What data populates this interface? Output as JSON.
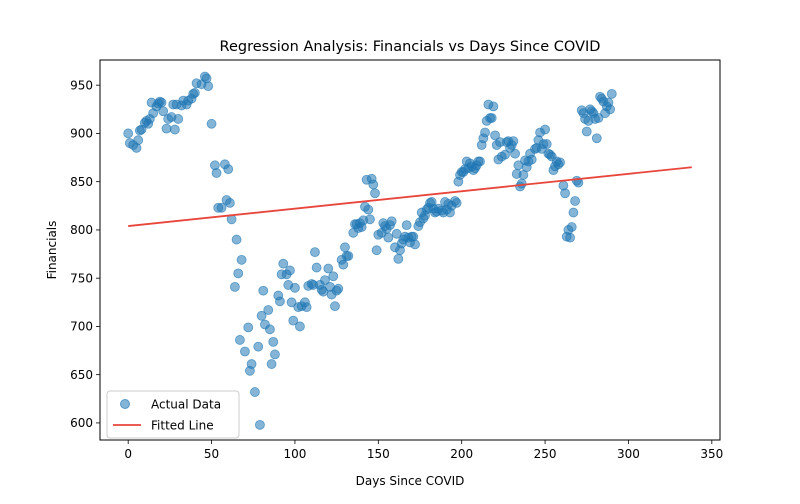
{
  "chart_data": {
    "type": "scatter",
    "title": "Regression Analysis: Financials vs Days Since COVID",
    "xlabel": "Days Since COVID",
    "ylabel": "Financials",
    "xlim": [
      -16.9,
      354.9
    ],
    "ylim": [
      582.3,
      976.1
    ],
    "xticks": [
      0,
      50,
      100,
      150,
      200,
      250,
      300,
      350
    ],
    "yticks": [
      600,
      650,
      700,
      750,
      800,
      850,
      900,
      950
    ],
    "grid": false,
    "legend_position": "lower-left",
    "series": [
      {
        "name": "Actual Data",
        "kind": "scatter",
        "color": "#1f77b4",
        "alpha": 0.55,
        "points": [
          [
            0,
            900
          ],
          [
            1,
            890
          ],
          [
            3,
            888
          ],
          [
            5,
            885
          ],
          [
            6,
            893
          ],
          [
            7,
            903
          ],
          [
            8,
            904
          ],
          [
            10,
            911
          ],
          [
            11,
            913
          ],
          [
            12,
            910
          ],
          [
            13,
            915
          ],
          [
            14,
            932
          ],
          [
            15,
            921
          ],
          [
            17,
            928
          ],
          [
            18,
            931
          ],
          [
            19,
            933
          ],
          [
            20,
            932
          ],
          [
            21,
            923
          ],
          [
            23,
            905
          ],
          [
            24,
            915
          ],
          [
            26,
            917
          ],
          [
            27,
            930
          ],
          [
            28,
            904
          ],
          [
            29,
            930
          ],
          [
            30,
            915
          ],
          [
            32,
            929
          ],
          [
            33,
            934
          ],
          [
            35,
            930
          ],
          [
            36,
            934
          ],
          [
            38,
            936
          ],
          [
            39,
            941
          ],
          [
            40,
            942
          ],
          [
            41,
            952
          ],
          [
            44,
            951
          ],
          [
            46,
            959
          ],
          [
            47,
            957
          ],
          [
            48,
            949
          ],
          [
            50,
            910
          ],
          [
            52,
            867
          ],
          [
            53,
            859
          ],
          [
            54,
            823
          ],
          [
            56,
            823
          ],
          [
            58,
            868
          ],
          [
            59,
            831
          ],
          [
            60,
            863
          ],
          [
            61,
            828
          ],
          [
            62,
            811
          ],
          [
            64,
            741
          ],
          [
            65,
            790
          ],
          [
            66,
            755
          ],
          [
            67,
            686
          ],
          [
            68,
            769
          ],
          [
            70,
            674
          ],
          [
            72,
            699
          ],
          [
            73,
            654
          ],
          [
            74,
            661
          ],
          [
            76,
            632
          ],
          [
            78,
            679
          ],
          [
            79,
            598
          ],
          [
            80,
            711
          ],
          [
            81,
            737
          ],
          [
            82,
            702
          ],
          [
            84,
            717
          ],
          [
            85,
            697
          ],
          [
            86,
            661
          ],
          [
            87,
            684
          ],
          [
            88,
            671
          ],
          [
            90,
            732
          ],
          [
            91,
            726
          ],
          [
            92,
            754
          ],
          [
            93,
            765
          ],
          [
            95,
            754
          ],
          [
            96,
            743
          ],
          [
            97,
            758
          ],
          [
            98,
            725
          ],
          [
            99,
            706
          ],
          [
            100,
            740
          ],
          [
            102,
            720
          ],
          [
            103,
            700
          ],
          [
            104,
            721
          ],
          [
            106,
            725
          ],
          [
            107,
            720
          ],
          [
            108,
            742
          ],
          [
            110,
            744
          ],
          [
            111,
            743
          ],
          [
            112,
            777
          ],
          [
            113,
            761
          ],
          [
            115,
            743
          ],
          [
            116,
            738
          ],
          [
            117,
            736
          ],
          [
            118,
            748
          ],
          [
            120,
            760
          ],
          [
            121,
            741
          ],
          [
            122,
            733
          ],
          [
            123,
            752
          ],
          [
            124,
            721
          ],
          [
            125,
            737
          ],
          [
            126,
            739
          ],
          [
            128,
            769
          ],
          [
            129,
            764
          ],
          [
            130,
            782
          ],
          [
            131,
            773
          ],
          [
            132,
            773
          ],
          [
            135,
            797
          ],
          [
            136,
            806
          ],
          [
            137,
            806
          ],
          [
            138,
            802
          ],
          [
            139,
            807
          ],
          [
            140,
            803
          ],
          [
            141,
            810
          ],
          [
            142,
            824
          ],
          [
            143,
            852
          ],
          [
            144,
            821
          ],
          [
            145,
            811
          ],
          [
            146,
            853
          ],
          [
            147,
            847
          ],
          [
            148,
            838
          ],
          [
            149,
            779
          ],
          [
            150,
            795
          ],
          [
            152,
            797
          ],
          [
            153,
            807
          ],
          [
            154,
            804
          ],
          [
            155,
            801
          ],
          [
            156,
            792
          ],
          [
            157,
            805
          ],
          [
            158,
            809
          ],
          [
            160,
            782
          ],
          [
            161,
            796
          ],
          [
            162,
            770
          ],
          [
            163,
            779
          ],
          [
            164,
            786
          ],
          [
            165,
            790
          ],
          [
            166,
            793
          ],
          [
            167,
            805
          ],
          [
            168,
            792
          ],
          [
            169,
            787
          ],
          [
            170,
            793
          ],
          [
            171,
            793
          ],
          [
            172,
            785
          ],
          [
            174,
            804
          ],
          [
            175,
            808
          ],
          [
            176,
            818
          ],
          [
            177,
            812
          ],
          [
            178,
            815
          ],
          [
            179,
            821
          ],
          [
            180,
            823
          ],
          [
            181,
            828
          ],
          [
            182,
            829
          ],
          [
            183,
            822
          ],
          [
            184,
            818
          ],
          [
            185,
            819
          ],
          [
            186,
            822
          ],
          [
            188,
            820
          ],
          [
            189,
            818
          ],
          [
            190,
            829
          ],
          [
            191,
            821
          ],
          [
            192,
            827
          ],
          [
            193,
            818
          ],
          [
            194,
            825
          ],
          [
            196,
            830
          ],
          [
            197,
            828
          ],
          [
            198,
            850
          ],
          [
            199,
            857
          ],
          [
            200,
            860
          ],
          [
            201,
            860
          ],
          [
            202,
            863
          ],
          [
            203,
            871
          ],
          [
            204,
            864
          ],
          [
            205,
            869
          ],
          [
            206,
            866
          ],
          [
            207,
            862
          ],
          [
            208,
            864
          ],
          [
            209,
            867
          ],
          [
            210,
            871
          ],
          [
            211,
            871
          ],
          [
            212,
            888
          ],
          [
            213,
            895
          ],
          [
            214,
            901
          ],
          [
            215,
            913
          ],
          [
            216,
            930
          ],
          [
            217,
            916
          ],
          [
            218,
            916
          ],
          [
            219,
            928
          ],
          [
            220,
            898
          ],
          [
            221,
            888
          ],
          [
            222,
            873
          ],
          [
            223,
            891
          ],
          [
            224,
            876
          ],
          [
            226,
            878
          ],
          [
            227,
            891
          ],
          [
            228,
            892
          ],
          [
            229,
            885
          ],
          [
            230,
            888
          ],
          [
            231,
            892
          ],
          [
            232,
            879
          ],
          [
            233,
            858
          ],
          [
            234,
            867
          ],
          [
            235,
            845
          ],
          [
            236,
            848
          ],
          [
            237,
            857
          ],
          [
            238,
            872
          ],
          [
            239,
            865
          ],
          [
            240,
            871
          ],
          [
            241,
            879
          ],
          [
            242,
            873
          ],
          [
            244,
            884
          ],
          [
            245,
            885
          ],
          [
            246,
            893
          ],
          [
            247,
            901
          ],
          [
            248,
            884
          ],
          [
            249,
            889
          ],
          [
            250,
            904
          ],
          [
            251,
            889
          ],
          [
            252,
            879
          ],
          [
            253,
            878
          ],
          [
            254,
            876
          ],
          [
            255,
            862
          ],
          [
            256,
            866
          ],
          [
            257,
            871
          ],
          [
            258,
            868
          ],
          [
            259,
            870
          ],
          [
            261,
            846
          ],
          [
            262,
            838
          ],
          [
            263,
            793
          ],
          [
            264,
            800
          ],
          [
            265,
            792
          ],
          [
            266,
            803
          ],
          [
            267,
            818
          ],
          [
            268,
            830
          ],
          [
            269,
            851
          ],
          [
            270,
            849
          ],
          [
            272,
            924
          ],
          [
            273,
            921
          ],
          [
            274,
            915
          ],
          [
            275,
            902
          ],
          [
            276,
            913
          ],
          [
            277,
            925
          ],
          [
            278,
            923
          ],
          [
            279,
            921
          ],
          [
            280,
            915
          ],
          [
            281,
            895
          ],
          [
            282,
            916
          ],
          [
            283,
            938
          ],
          [
            284,
            936
          ],
          [
            285,
            933
          ],
          [
            286,
            921
          ],
          [
            287,
            928
          ],
          [
            288,
            932
          ],
          [
            289,
            925
          ],
          [
            290,
            941
          ]
        ]
      },
      {
        "name": "Fitted Line",
        "kind": "line",
        "color": "#e8463c",
        "x": [
          0,
          338
        ],
        "y": [
          804,
          865
        ]
      }
    ]
  }
}
